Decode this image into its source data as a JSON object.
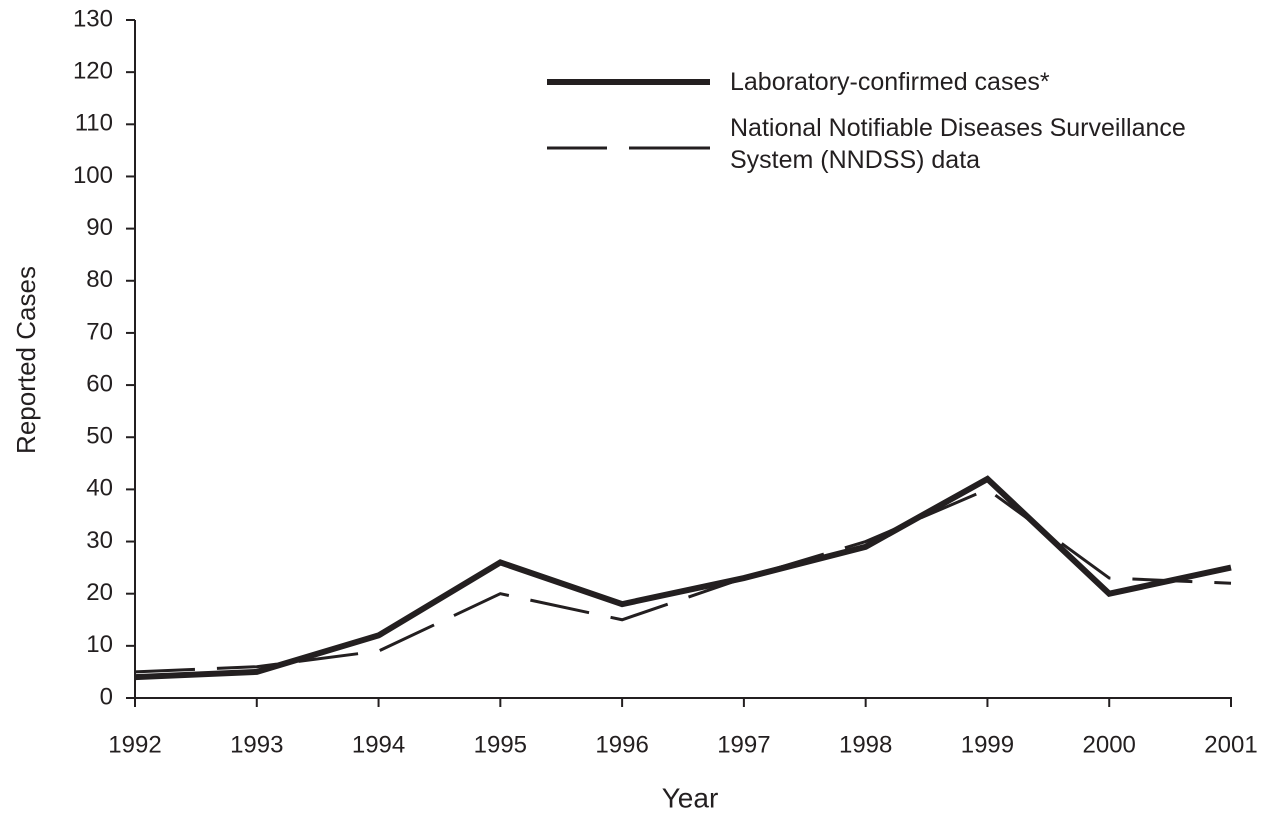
{
  "chart_data": {
    "type": "line",
    "x_label": "Year",
    "y_label": "Reported Cases",
    "x": [
      1992,
      1993,
      1994,
      1995,
      1996,
      1997,
      1998,
      1999,
      2000,
      2001
    ],
    "xlim": [
      1992,
      2001
    ],
    "xticks": [
      1992,
      1993,
      1994,
      1995,
      1996,
      1997,
      1998,
      1999,
      2000,
      2001
    ],
    "ylim": [
      0,
      130
    ],
    "yticks": [
      0,
      10,
      20,
      30,
      40,
      50,
      60,
      70,
      80,
      90,
      100,
      110,
      120,
      130
    ],
    "grid": false,
    "legend": "upper right",
    "series": [
      {
        "name": "Laboratory-confirmed cases*",
        "color": "#231f20",
        "line_style": "solid",
        "values": [
          4,
          5,
          12,
          26,
          18,
          23,
          29,
          42,
          20,
          25
        ]
      },
      {
        "name": "National Notifiable Diseases Surveillance System (NNDSS) data",
        "color": "#231f20",
        "line_style": "dashed",
        "values": [
          5,
          6,
          9,
          20,
          15,
          23,
          30,
          40,
          23,
          22
        ]
      }
    ]
  }
}
